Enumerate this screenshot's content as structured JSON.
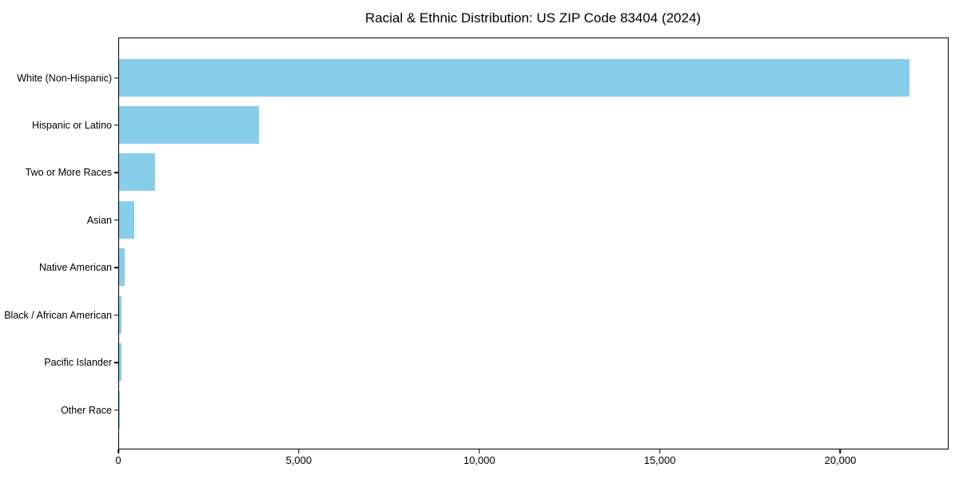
{
  "chart_data": {
    "type": "bar",
    "orientation": "horizontal",
    "title": "Racial & Ethnic Distribution: US ZIP Code 83404 (2024)",
    "categories": [
      "White (Non-Hispanic)",
      "Hispanic or Latino",
      "Two or More Races",
      "Asian",
      "Native American",
      "Black / African American",
      "Pacific Islander",
      "Other Race"
    ],
    "values": [
      21900,
      3880,
      1000,
      420,
      160,
      70,
      65,
      10
    ],
    "xlabel": "",
    "ylabel": "",
    "xlim": [
      0,
      23000
    ],
    "x_ticks": [
      0,
      5000,
      10000,
      15000,
      20000
    ],
    "x_tick_labels": [
      "0",
      "5,000",
      "10,000",
      "15,000",
      "20,000"
    ],
    "bar_color": "#87CEEB",
    "axis_color": "#000000",
    "text_color": "#000000",
    "background_color": "#FFFFFF",
    "grid": false,
    "legend": null
  }
}
